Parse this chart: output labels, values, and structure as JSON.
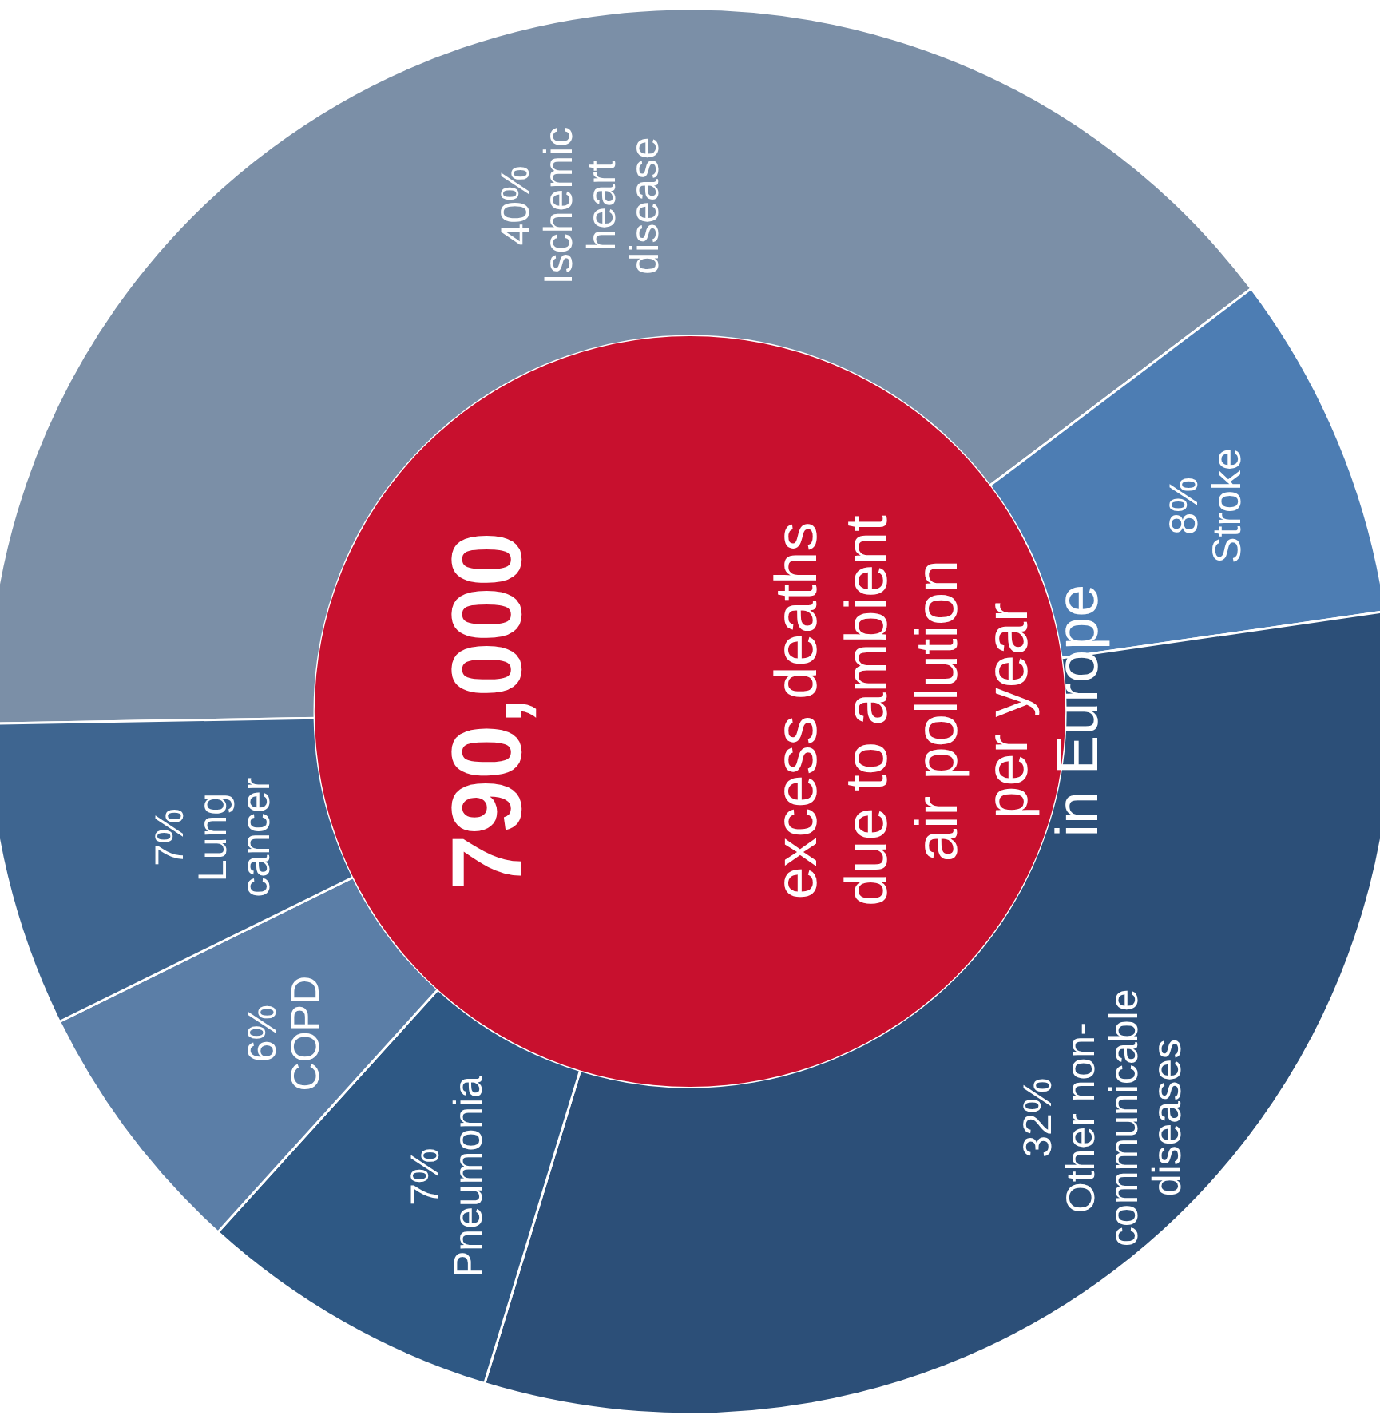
{
  "chart_data": {
    "type": "donut",
    "categories": [
      "Ischemic heart disease",
      "Stroke",
      "Other non-communicable diseases",
      "Pneumonia",
      "COPD",
      "Lung cancer"
    ],
    "values": [
      40,
      8,
      32,
      7,
      6,
      7
    ],
    "colors": [
      "#7b8fa7",
      "#4d7db3",
      "#2c4f78",
      "#2e5884",
      "#5b7ea7",
      "#3e6590"
    ],
    "value_labels": [
      "40%",
      "8%",
      "32%",
      "7%",
      "6%",
      "7%"
    ],
    "annotations": [
      "790,000",
      "excess deaths\ndue to ambient\nair pollution\nper year\nin Europe"
    ]
  }
}
